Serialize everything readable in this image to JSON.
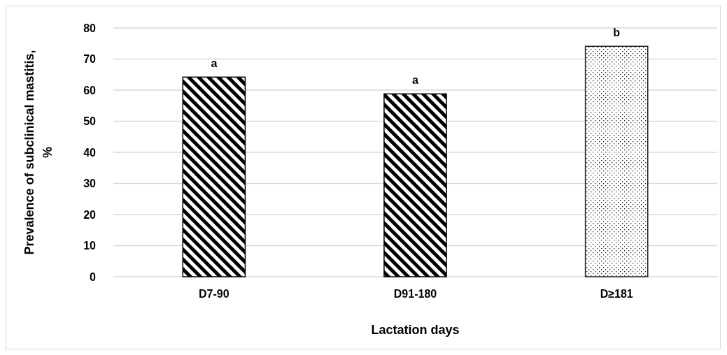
{
  "chart_data": {
    "type": "bar",
    "xlabel": "Lactation days",
    "ylabel": "Prevalence of subclinical mastitis, %",
    "categories": [
      "D7-90",
      "D91-180",
      "D≥181"
    ],
    "values": [
      64.2,
      58.8,
      74.1
    ],
    "colors": [
      "#000000",
      "#000000",
      "#202020"
    ],
    "ylim": [
      0,
      80
    ],
    "yticks": [
      0,
      10,
      20,
      30,
      40,
      50,
      60,
      70,
      80
    ],
    "grid": "y",
    "annotations": [
      {
        "text": "a",
        "x": "D7-90",
        "y": 64.2
      },
      {
        "text": "a",
        "x": "D91-180",
        "y": 58.8
      },
      {
        "text": "b",
        "x": "D≥181",
        "y": 74.1
      }
    ]
  }
}
